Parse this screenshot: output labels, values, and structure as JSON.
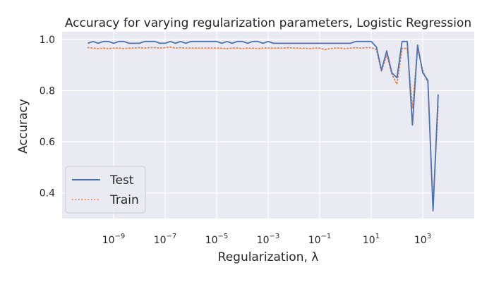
{
  "chart_data": {
    "type": "line",
    "title": "Accuracy for varying regularization parameters, Logistic Regression",
    "xlabel": "Regularization, λ",
    "ylabel": "Accuracy",
    "xscale": "log",
    "xlim": [
      1e-11,
      100000.0
    ],
    "ylim": [
      0.3,
      1.03
    ],
    "grid": true,
    "legend_position": "lower-left",
    "y_ticks": [
      {
        "value": 0.4,
        "label": "0.4"
      },
      {
        "value": 0.6,
        "label": "0.6"
      },
      {
        "value": 0.8,
        "label": "0.8"
      },
      {
        "value": 1.0,
        "label": "1.0"
      }
    ],
    "x_ticks": [
      {
        "value": 1e-09,
        "base": "10",
        "exp": "−9"
      },
      {
        "value": 1e-07,
        "base": "10",
        "exp": "−7"
      },
      {
        "value": 1e-05,
        "base": "10",
        "exp": "−5"
      },
      {
        "value": 0.001,
        "base": "10",
        "exp": "−3"
      },
      {
        "value": 0.1,
        "base": "10",
        "exp": "−1"
      },
      {
        "value": 10.0,
        "base": "10",
        "exp": "1"
      },
      {
        "value": 1000.0,
        "base": "10",
        "exp": "3"
      }
    ],
    "series": [
      {
        "name": "Test",
        "color": "#4c72b0",
        "style": "solid",
        "points": [
          [
            1e-10,
            0.985
          ],
          [
            1.6e-10,
            0.992
          ],
          [
            2.5e-10,
            0.985
          ],
          [
            4e-10,
            0.992
          ],
          [
            6.3e-10,
            0.992
          ],
          [
            1e-09,
            0.985
          ],
          [
            1.6e-09,
            0.992
          ],
          [
            2.5e-09,
            0.992
          ],
          [
            4e-09,
            0.985
          ],
          [
            6.3e-09,
            0.985
          ],
          [
            1e-08,
            0.985
          ],
          [
            1.6e-08,
            0.992
          ],
          [
            2.5e-08,
            0.992
          ],
          [
            4e-08,
            0.992
          ],
          [
            6.3e-08,
            0.985
          ],
          [
            1e-07,
            0.985
          ],
          [
            1.6e-07,
            0.992
          ],
          [
            2.5e-07,
            0.985
          ],
          [
            4e-07,
            0.992
          ],
          [
            6.3e-07,
            0.985
          ],
          [
            1e-06,
            0.992
          ],
          [
            1.6e-06,
            0.992
          ],
          [
            2.5e-06,
            0.992
          ],
          [
            4e-06,
            0.992
          ],
          [
            6.3e-06,
            0.992
          ],
          [
            1e-05,
            0.992
          ],
          [
            1.6e-05,
            0.985
          ],
          [
            2.5e-05,
            0.992
          ],
          [
            4e-05,
            0.985
          ],
          [
            6.3e-05,
            0.992
          ],
          [
            0.0001,
            0.992
          ],
          [
            0.00016,
            0.985
          ],
          [
            0.00025,
            0.992
          ],
          [
            0.0004,
            0.992
          ],
          [
            0.00063,
            0.985
          ],
          [
            0.001,
            0.992
          ],
          [
            0.0016,
            0.985
          ],
          [
            0.0025,
            0.985
          ],
          [
            0.004,
            0.985
          ],
          [
            0.0063,
            0.985
          ],
          [
            0.01,
            0.985
          ],
          [
            0.016,
            0.985
          ],
          [
            0.025,
            0.985
          ],
          [
            0.04,
            0.985
          ],
          [
            0.063,
            0.985
          ],
          [
            0.1,
            0.985
          ],
          [
            0.16,
            0.985
          ],
          [
            0.25,
            0.985
          ],
          [
            0.4,
            0.985
          ],
          [
            0.63,
            0.985
          ],
          [
            1.0,
            0.985
          ],
          [
            1.6,
            0.985
          ],
          [
            2.5,
            0.992
          ],
          [
            4.0,
            0.992
          ],
          [
            6.3,
            0.992
          ],
          [
            10.0,
            0.992
          ],
          [
            16.0,
            0.97
          ],
          [
            25.0,
            0.88
          ],
          [
            40.0,
            0.955
          ],
          [
            63.0,
            0.87
          ],
          [
            100,
            0.85
          ],
          [
            158,
            0.992
          ],
          [
            251,
            0.992
          ],
          [
            398,
            0.665
          ],
          [
            631,
            0.978
          ],
          [
            1000,
            0.87
          ],
          [
            1585,
            0.84
          ],
          [
            2512,
            0.33
          ],
          [
            3981,
            0.785
          ]
        ]
      },
      {
        "name": "Train",
        "color": "#dd8452",
        "style": "dotted",
        "points": [
          [
            1e-10,
            0.968
          ],
          [
            1.6e-10,
            0.966
          ],
          [
            2.5e-10,
            0.964
          ],
          [
            4e-10,
            0.966
          ],
          [
            6.3e-10,
            0.964
          ],
          [
            1e-09,
            0.966
          ],
          [
            1.6e-09,
            0.966
          ],
          [
            2.5e-09,
            0.964
          ],
          [
            4e-09,
            0.966
          ],
          [
            6.3e-09,
            0.966
          ],
          [
            1e-08,
            0.968
          ],
          [
            1.6e-08,
            0.966
          ],
          [
            2.5e-08,
            0.968
          ],
          [
            4e-08,
            0.968
          ],
          [
            6.3e-08,
            0.966
          ],
          [
            1e-07,
            0.968
          ],
          [
            1.6e-07,
            0.97
          ],
          [
            2.5e-07,
            0.966
          ],
          [
            4e-07,
            0.968
          ],
          [
            6.3e-07,
            0.966
          ],
          [
            1e-06,
            0.966
          ],
          [
            1.6e-06,
            0.966
          ],
          [
            2.5e-06,
            0.966
          ],
          [
            4e-06,
            0.966
          ],
          [
            6.3e-06,
            0.966
          ],
          [
            1e-05,
            0.966
          ],
          [
            1.6e-05,
            0.966
          ],
          [
            2.5e-05,
            0.964
          ],
          [
            4e-05,
            0.966
          ],
          [
            6.3e-05,
            0.966
          ],
          [
            0.0001,
            0.964
          ],
          [
            0.00016,
            0.966
          ],
          [
            0.00025,
            0.966
          ],
          [
            0.0004,
            0.964
          ],
          [
            0.00063,
            0.966
          ],
          [
            0.001,
            0.966
          ],
          [
            0.0016,
            0.966
          ],
          [
            0.0025,
            0.966
          ],
          [
            0.004,
            0.966
          ],
          [
            0.0063,
            0.968
          ],
          [
            0.01,
            0.966
          ],
          [
            0.016,
            0.966
          ],
          [
            0.025,
            0.966
          ],
          [
            0.04,
            0.964
          ],
          [
            0.063,
            0.966
          ],
          [
            0.1,
            0.966
          ],
          [
            0.16,
            0.96
          ],
          [
            0.25,
            0.964
          ],
          [
            0.4,
            0.966
          ],
          [
            0.63,
            0.966
          ],
          [
            1.0,
            0.964
          ],
          [
            1.6,
            0.966
          ],
          [
            2.5,
            0.968
          ],
          [
            4.0,
            0.966
          ],
          [
            6.3,
            0.968
          ],
          [
            10.0,
            0.968
          ],
          [
            16.0,
            0.96
          ],
          [
            25.0,
            0.875
          ],
          [
            40.0,
            0.94
          ],
          [
            63.0,
            0.865
          ],
          [
            100,
            0.825
          ],
          [
            158,
            0.965
          ],
          [
            251,
            0.965
          ],
          [
            398,
            0.73
          ],
          [
            631,
            0.965
          ],
          [
            1000,
            0.88
          ],
          [
            1585,
            0.83
          ],
          [
            2512,
            0.35
          ],
          [
            3981,
            0.74
          ]
        ]
      }
    ]
  }
}
